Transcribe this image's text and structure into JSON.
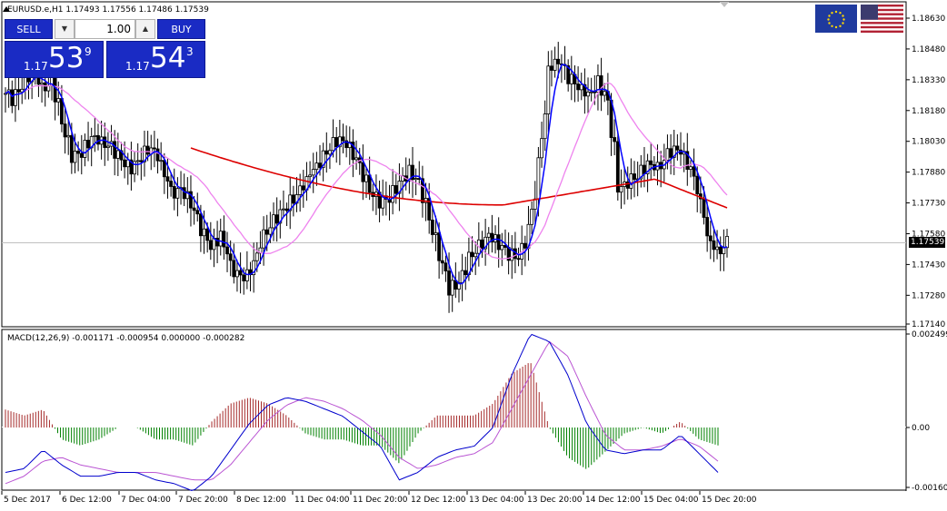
{
  "chart_header": {
    "symbol_info": "EURUSD.e,H1  1.17493 1.17556 1.17486 1.17539"
  },
  "one_click": {
    "sell_label": "SELL",
    "buy_label": "BUY",
    "lot": "1.00",
    "sell_small": "1.17",
    "sell_big": "53",
    "sell_sup": "9",
    "buy_small": "1.17",
    "buy_big": "54",
    "buy_sup": "3"
  },
  "flags": {
    "base": "eu-flag-icon",
    "quote": "us-flag-icon"
  },
  "colors": {
    "candle": "#000000",
    "ma_fast": "#0000ff",
    "ma_slow": "#ee82ee",
    "ma_long": "#dd0000",
    "hist_up": "#a52a2a",
    "hist_down": "#008000",
    "macd_line": "#0000cd",
    "signal_line": "#ba55d3",
    "bid_line": "#c0c0c0"
  },
  "chart_data": [
    {
      "type": "candlestick",
      "title": "EURUSD.e,H1",
      "y_ticks": [
        "1.18630",
        "1.18480",
        "1.18330",
        "1.18180",
        "1.18030",
        "1.17880",
        "1.17730",
        "1.17580",
        "1.17430",
        "1.17280",
        "1.17140"
      ],
      "current_price": "1.17539",
      "ylim": [
        1.1714,
        1.1868
      ],
      "x_labels": [
        "5 Dec 2017",
        "6 Dec 12:00",
        "7 Dec 04:00",
        "7 Dec 20:00",
        "8 Dec 12:00",
        "11 Dec 04:00",
        "11 Dec 20:00",
        "12 Dec 12:00",
        "13 Dec 04:00",
        "13 Dec 20:00",
        "14 Dec 12:00",
        "15 Dec 04:00",
        "15 Dec 20:00"
      ],
      "series": [
        {
          "name": "close",
          "values": [
            1.1823,
            1.1831,
            1.1838,
            1.1829,
            1.1832,
            1.1811,
            1.1795,
            1.1798,
            1.1806,
            1.1803,
            1.18,
            1.1793,
            1.1789,
            1.1796,
            1.1801,
            1.1792,
            1.1778,
            1.1779,
            1.1772,
            1.176,
            1.1752,
            1.1758,
            1.1742,
            1.1736,
            1.1739,
            1.1754,
            1.1763,
            1.1769,
            1.1774,
            1.1779,
            1.1787,
            1.1793,
            1.1801,
            1.1805,
            1.18,
            1.179,
            1.1778,
            1.1773,
            1.1776,
            1.1784,
            1.1789,
            1.1782,
            1.1764,
            1.1747,
            1.1731,
            1.1735,
            1.1747,
            1.1752,
            1.1757,
            1.1752,
            1.1748,
            1.1747,
            1.1761,
            1.1792,
            1.1838,
            1.1842,
            1.1834,
            1.183,
            1.1826,
            1.1832,
            1.1821,
            1.1779,
            1.1783,
            1.1787,
            1.1793,
            1.179,
            1.1797,
            1.1799,
            1.1792,
            1.178,
            1.1757,
            1.1749,
            1.1754
          ]
        }
      ]
    },
    {
      "type": "line",
      "title": "MACD(12,26,9) -0.001171 -0.000954 0.000000 -0.000282",
      "y_ticks": [
        "0.002499",
        "0.00",
        "-0.001601"
      ],
      "series": [
        {
          "name": "MACD",
          "values": [
            -0.0012,
            -0.0011,
            -0.0006,
            -0.001,
            -0.0013,
            -0.0013,
            -0.0012,
            -0.0012,
            -0.0014,
            -0.0015,
            -0.0017,
            -0.0013,
            -0.0006,
            0.0001,
            0.0006,
            0.0008,
            0.0007,
            0.0005,
            0.0003,
            -0.0001,
            -0.0005,
            -0.0014,
            -0.0012,
            -0.0008,
            -0.0006,
            -0.0005,
            0.0,
            0.0014,
            0.0025,
            0.0023,
            0.0014,
            0.0001,
            -0.0006,
            -0.0007,
            -0.0006,
            -0.0006,
            -0.0002,
            -0.0007,
            -0.0012
          ]
        },
        {
          "name": "Signal",
          "values": [
            -0.0015,
            -0.0013,
            -0.0009,
            -0.0008,
            -0.001,
            -0.0011,
            -0.0012,
            -0.0012,
            -0.0012,
            -0.0013,
            -0.0014,
            -0.0014,
            -0.001,
            -0.0004,
            0.0002,
            0.0006,
            0.0008,
            0.0007,
            0.0005,
            0.0002,
            -0.0002,
            -0.0008,
            -0.0011,
            -0.001,
            -0.0008,
            -0.0007,
            -0.0004,
            0.0005,
            0.0014,
            0.0023,
            0.0019,
            0.0008,
            -0.0002,
            -0.0006,
            -0.0006,
            -0.0005,
            -0.0003,
            -0.0005,
            -0.0009
          ]
        }
      ]
    }
  ]
}
